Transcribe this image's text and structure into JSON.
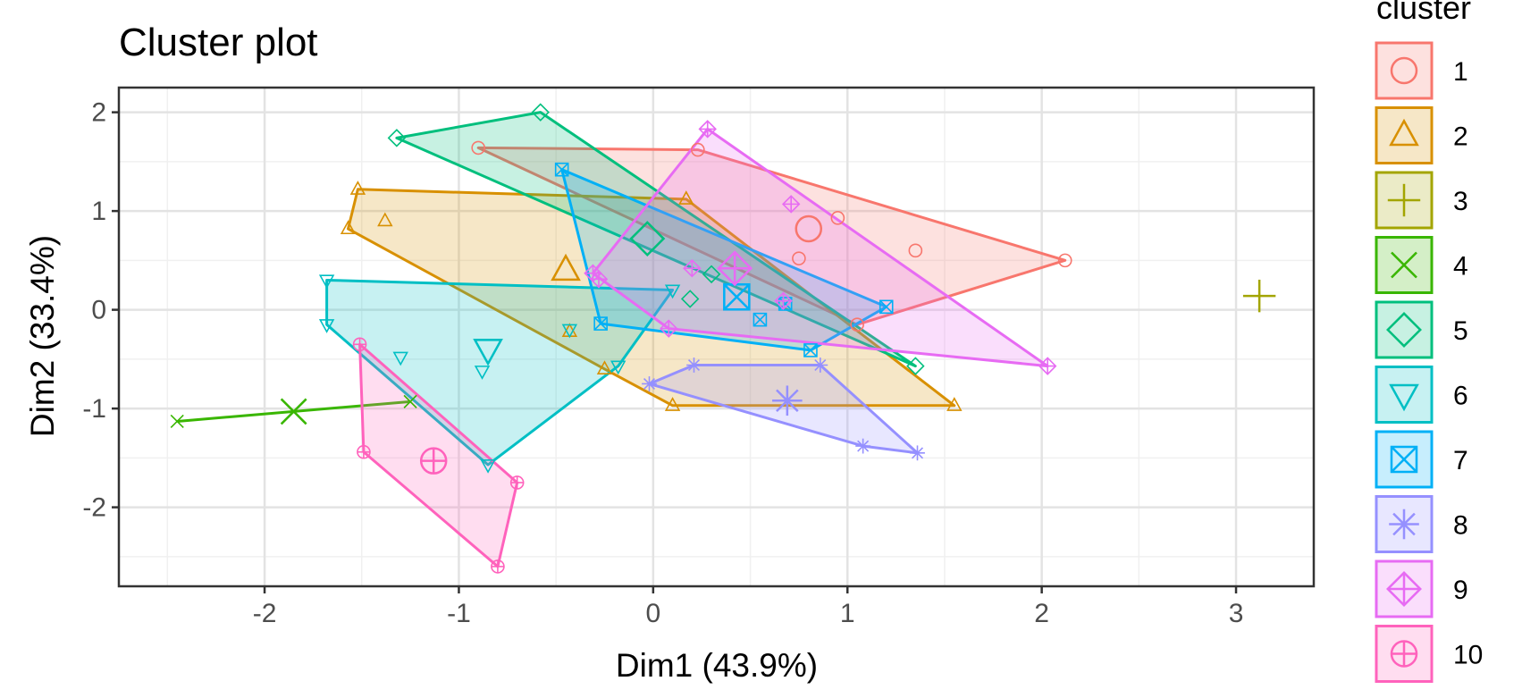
{
  "chart_data": {
    "type": "scatter",
    "title": "Cluster plot",
    "xlabel": "Dim1 (43.9%)",
    "ylabel": "Dim2 (33.4%)",
    "xlim": [
      -2.75,
      3.4
    ],
    "ylim": [
      -2.8,
      2.25
    ],
    "x_ticks": [
      -2,
      -1,
      0,
      1,
      2,
      3
    ],
    "y_ticks": [
      -2,
      -1,
      0,
      1,
      2
    ],
    "x_tick_labels": [
      "-2",
      "-1",
      "0",
      "1",
      "2",
      "3"
    ],
    "y_tick_labels": [
      "-2",
      "-1",
      "0",
      "1",
      "2"
    ],
    "grid": true,
    "legend": {
      "title": "cluster",
      "position": "right"
    },
    "series": [
      {
        "name": "1",
        "color": "#F8766D",
        "shape": "circle-open",
        "points": [
          [
            -0.9,
            1.64
          ],
          [
            0.23,
            1.62
          ],
          [
            0.95,
            0.93
          ],
          [
            2.12,
            0.5
          ],
          [
            1.35,
            0.6
          ],
          [
            0.75,
            0.52
          ],
          [
            1.05,
            -0.15
          ]
        ],
        "hull": [
          [
            -0.9,
            1.64
          ],
          [
            0.23,
            1.62
          ],
          [
            2.12,
            0.5
          ],
          [
            1.05,
            -0.15
          ]
        ],
        "center": [
          0.8,
          0.82
        ]
      },
      {
        "name": "2",
        "color": "#D89000",
        "shape": "triangle-open",
        "points": [
          [
            -1.52,
            1.22
          ],
          [
            -1.38,
            0.9
          ],
          [
            -1.57,
            0.82
          ],
          [
            0.17,
            1.12
          ],
          [
            1.55,
            -0.97
          ],
          [
            0.1,
            -0.97
          ],
          [
            -0.25,
            -0.6
          ],
          [
            -0.43,
            -0.22
          ]
        ],
        "hull": [
          [
            -1.52,
            1.22
          ],
          [
            0.17,
            1.12
          ],
          [
            1.55,
            -0.97
          ],
          [
            0.1,
            -0.97
          ],
          [
            -0.25,
            -0.6
          ],
          [
            -1.57,
            0.82
          ]
        ],
        "center": [
          -0.45,
          0.4
        ]
      },
      {
        "name": "3",
        "color": "#A3A500",
        "shape": "plus",
        "points": [
          [
            3.12,
            0.14
          ]
        ],
        "hull": [],
        "center": [
          3.12,
          0.14
        ]
      },
      {
        "name": "4",
        "color": "#39B600",
        "shape": "cross",
        "points": [
          [
            -2.45,
            -1.13
          ],
          [
            -1.25,
            -0.93
          ]
        ],
        "hull": [
          [
            -2.45,
            -1.13
          ],
          [
            -1.25,
            -0.93
          ]
        ],
        "center": [
          -1.85,
          -1.03
        ]
      },
      {
        "name": "5",
        "color": "#00BF7D",
        "shape": "diamond-open",
        "points": [
          [
            -1.32,
            1.74
          ],
          [
            -0.58,
            2.0
          ],
          [
            1.35,
            -0.57
          ],
          [
            0.19,
            0.11
          ],
          [
            0.3,
            0.36
          ]
        ],
        "hull": [
          [
            -1.32,
            1.74
          ],
          [
            -0.58,
            2.0
          ],
          [
            1.35,
            -0.57
          ]
        ],
        "center": [
          -0.03,
          0.72
        ]
      },
      {
        "name": "6",
        "color": "#00BFC4",
        "shape": "triangle-down-open",
        "points": [
          [
            -1.68,
            0.3
          ],
          [
            -1.68,
            -0.15
          ],
          [
            -0.85,
            -1.57
          ],
          [
            -0.18,
            -0.57
          ],
          [
            0.1,
            0.2
          ],
          [
            -1.3,
            -0.48
          ],
          [
            -0.88,
            -0.62
          ],
          [
            -0.43,
            -0.2
          ]
        ],
        "hull": [
          [
            -1.68,
            0.3
          ],
          [
            0.1,
            0.2
          ],
          [
            -0.18,
            -0.57
          ],
          [
            -0.85,
            -1.57
          ],
          [
            -1.68,
            -0.15
          ]
        ],
        "center": [
          -0.85,
          -0.4
        ]
      },
      {
        "name": "7",
        "color": "#00B0F6",
        "shape": "square-cross",
        "points": [
          [
            -0.47,
            1.42
          ],
          [
            1.2,
            0.03
          ],
          [
            0.81,
            -0.41
          ],
          [
            -0.27,
            -0.14
          ],
          [
            0.55,
            -0.1
          ],
          [
            0.68,
            0.06
          ]
        ],
        "hull": [
          [
            -0.47,
            1.42
          ],
          [
            1.2,
            0.03
          ],
          [
            0.81,
            -0.41
          ],
          [
            -0.27,
            -0.14
          ]
        ],
        "center": [
          0.43,
          0.13
        ]
      },
      {
        "name": "8",
        "color": "#9590FF",
        "shape": "asterisk",
        "points": [
          [
            -0.02,
            -0.75
          ],
          [
            0.21,
            -0.56
          ],
          [
            0.86,
            -0.56
          ],
          [
            1.36,
            -1.45
          ],
          [
            1.08,
            -1.38
          ]
        ],
        "hull": [
          [
            -0.02,
            -0.75
          ],
          [
            0.21,
            -0.56
          ],
          [
            0.86,
            -0.56
          ],
          [
            1.36,
            -1.45
          ],
          [
            1.08,
            -1.38
          ]
        ],
        "center": [
          0.69,
          -0.92
        ]
      },
      {
        "name": "9",
        "color": "#E76BF3",
        "shape": "diamond-plus",
        "points": [
          [
            0.28,
            1.83
          ],
          [
            2.03,
            -0.57
          ],
          [
            0.08,
            -0.19
          ],
          [
            -0.28,
            0.31
          ],
          [
            -0.31,
            0.37
          ],
          [
            0.71,
            1.07
          ],
          [
            0.2,
            0.42
          ],
          [
            0.67,
            0.09
          ]
        ],
        "hull": [
          [
            0.28,
            1.83
          ],
          [
            2.03,
            -0.57
          ],
          [
            0.08,
            -0.19
          ],
          [
            -0.31,
            0.37
          ]
        ],
        "center": [
          0.42,
          0.42
        ]
      },
      {
        "name": "10",
        "color": "#FF62BC",
        "shape": "circle-plus",
        "points": [
          [
            -1.51,
            -0.35
          ],
          [
            -1.49,
            -1.44
          ],
          [
            -0.8,
            -2.6
          ],
          [
            -0.7,
            -1.75
          ]
        ],
        "hull": [
          [
            -1.51,
            -0.35
          ],
          [
            -0.7,
            -1.75
          ],
          [
            -0.8,
            -2.6
          ],
          [
            -1.49,
            -1.44
          ]
        ],
        "center": [
          -1.13,
          -1.53
        ]
      }
    ]
  }
}
